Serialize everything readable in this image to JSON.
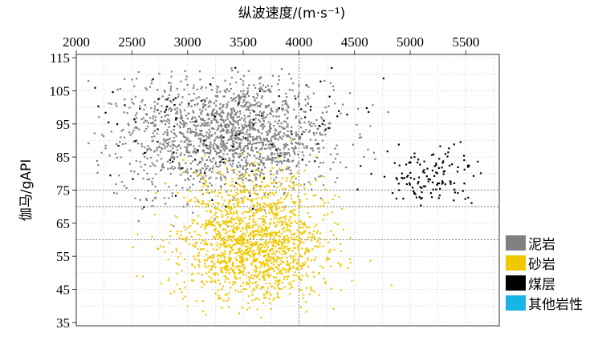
{
  "chart_data": {
    "type": "scatter",
    "xlabel": "纵波速度/(m·s-1)",
    "ylabel": "伽马/gAPI",
    "x_axis_position": "top",
    "xlim": [
      2000,
      5800
    ],
    "ylim": [
      34,
      116
    ],
    "x_ticks": [
      2000,
      2500,
      3000,
      3500,
      4000,
      4500,
      5000,
      5500
    ],
    "y_ticks": [
      35,
      45,
      55,
      65,
      75,
      85,
      95,
      105,
      115
    ],
    "grid": "dotted",
    "reference_lines_y": [
      60,
      70,
      75
    ],
    "reference_line_x": 4000,
    "legend_placement": "lower-right outside",
    "series": [
      {
        "name": "泥岩",
        "color": "#808080",
        "clusters": [
          {
            "count": 1500,
            "x_mean": 3450,
            "x_sd": 420,
            "y_mean": 92,
            "y_sd": 8.5
          },
          {
            "count": 180,
            "x_mean": 2650,
            "x_sd": 280,
            "y_mean": 90,
            "y_sd": 10
          }
        ]
      },
      {
        "name": "砂岩",
        "color": "#f0c800",
        "clusters": [
          {
            "count": 1300,
            "x_mean": 3600,
            "x_sd": 330,
            "y_mean": 57,
            "y_sd": 8
          },
          {
            "count": 300,
            "x_mean": 3550,
            "x_sd": 300,
            "y_mean": 72,
            "y_sd": 6
          }
        ]
      },
      {
        "name": "煤层",
        "color": "#000000",
        "clusters": [
          {
            "count": 130,
            "x_mean": 5200,
            "x_sd": 230,
            "y_mean": 79,
            "y_sd": 4
          },
          {
            "count": 80,
            "x_mean": 2800,
            "x_sd": 600,
            "y_mean": 94,
            "y_sd": 10
          },
          {
            "count": 40,
            "x_mean": 4100,
            "x_sd": 350,
            "y_mean": 100,
            "y_sd": 9
          }
        ]
      },
      {
        "name": "其他岩性",
        "color": "#18b4e6",
        "clusters": []
      }
    ]
  }
}
